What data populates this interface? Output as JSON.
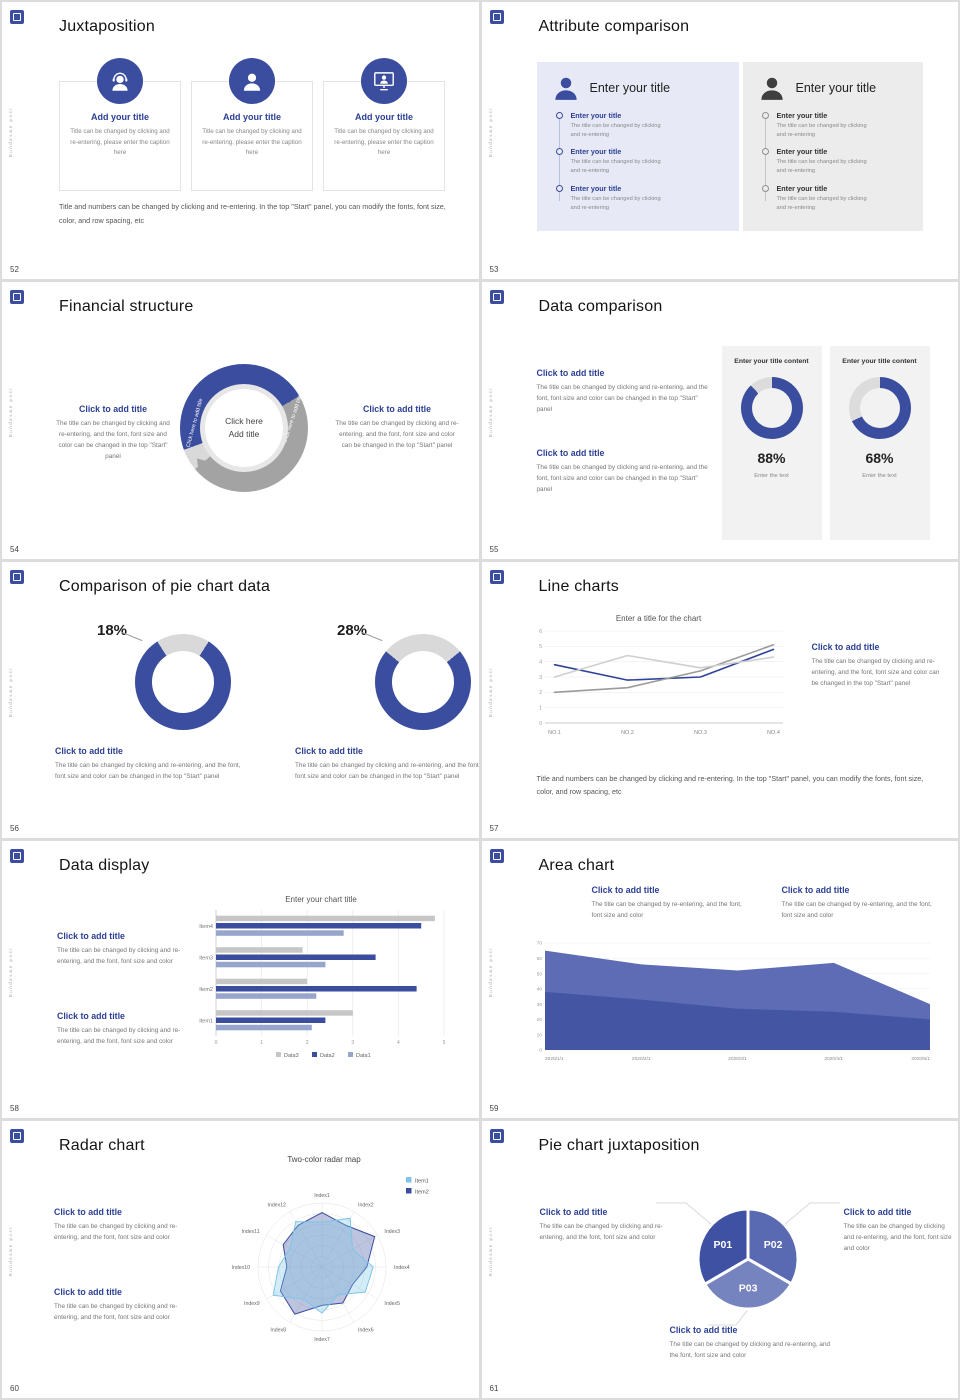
{
  "page": {
    "bg": "#dcdcdc",
    "slide_bg": "#ffffff",
    "accent": "#3a4d9f",
    "donut_gray": "#dcdcdc"
  },
  "common": {
    "side_text": "Bundeswe post"
  },
  "slides": {
    "s52": {
      "number": "52",
      "title": "Juxtaposition",
      "cards": [
        {
          "heading": "Add your title",
          "caption": "Title can be changed by clicking and re-entering, please enter the caption here"
        },
        {
          "heading": "Add your title",
          "caption": "Title can be changed by clicking and re-entering, please enter the caption here"
        },
        {
          "heading": "Add your title",
          "caption": "Title can be changed by clicking and re-entering, please enter the caption here"
        }
      ],
      "footer": "Title and numbers can be changed by clicking and re-entering. In the top \"Start\" panel, you can modify the fonts, font size, color, and row spacing, etc"
    },
    "s53": {
      "number": "53",
      "title": "Attribute comparison",
      "panels": [
        {
          "title": "Enter your title",
          "items": [
            {
              "heading": "Enter your title",
              "body": "The title can be changed by clicking and re-entering"
            },
            {
              "heading": "Enter your title",
              "body": "The title can be changed by clicking and re-entering"
            },
            {
              "heading": "Enter your title",
              "body": "The title can be changed by clicking and re-entering"
            }
          ]
        },
        {
          "title": "Enter your title",
          "items": [
            {
              "heading": "Enter your title",
              "body": "The title can be changed by clicking and re-entering"
            },
            {
              "heading": "Enter your title",
              "body": "The title can be changed by clicking and re-entering"
            },
            {
              "heading": "Enter your title",
              "body": "The title can be changed by clicking and re-entering"
            }
          ]
        }
      ]
    },
    "s54": {
      "number": "54",
      "title": "Financial structure",
      "left": {
        "heading": "Click to add title",
        "body": "The title can be changed by clicking and re-entering, and the font, font size and color can be changed in the top \"Start\" panel"
      },
      "right": {
        "heading": "Click to add title",
        "body": "The title can be changed by clicking and re-entering, and the font, font size and color can be changed in the top \"Start\" panel"
      },
      "center": {
        "line1": "Click here",
        "line2": "Add title",
        "arc_label_left": "Click here to add title",
        "arc_label_right": "Click here to add title"
      }
    },
    "s55": {
      "number": "55",
      "title": "Data comparison",
      "sections": [
        {
          "heading": "Click to add title",
          "body": "The title can be changed by clicking and re-entering, and the font, font size and color can be changed in the top \"Start\" panel"
        },
        {
          "heading": "Click to add title",
          "body": "The title can be changed by clicking and re-entering, and the font, font size and color can be changed in the top \"Start\" panel"
        }
      ],
      "cards": [
        {
          "header": "Enter your title content",
          "pct_label": "88%",
          "footer": "Enter the text"
        },
        {
          "header": "Enter your title content",
          "pct_label": "68%",
          "footer": "Enter the text"
        }
      ]
    },
    "s56": {
      "number": "56",
      "title": "Comparison of pie chart data",
      "groups": [
        {
          "pct_label": "18%",
          "heading": "Click to add title",
          "body": "The title can be changed by clicking and re-entering, and the font, font size and color can be changed in the top \"Start\" panel"
        },
        {
          "pct_label": "28%",
          "heading": "Click to add title",
          "body": "The title can be changed by clicking and re-entering, and the font, font size and color can be changed in the top \"Start\" panel"
        }
      ]
    },
    "s57": {
      "number": "57",
      "title": "Line charts",
      "chart_title": "Enter a title for the chart",
      "section": {
        "heading": "Click to add title",
        "body": "The title can be changed by clicking and re-entering, and the font, font size and color can be changed in the top \"Start\" panel"
      },
      "footer": "Title and numbers can be changed by clicking and re-entering. In the top \"Start\" panel, you can modify the fonts, font size, color, and row spacing, etc"
    },
    "s58": {
      "number": "58",
      "title": "Data display",
      "chart_title": "Enter your chart title",
      "sections": [
        {
          "heading": "Click to add title",
          "body": "The title can be changed by clicking and re-entering, and the font, font size and color"
        },
        {
          "heading": "Click to add title",
          "body": "The title can be changed by clicking and re-entering, and the font, font size and color"
        }
      ]
    },
    "s59": {
      "number": "59",
      "title": "Area chart",
      "sections": [
        {
          "heading": "Click to add title",
          "body": "The title can be changed by re-entering, and the font, font size and color"
        },
        {
          "heading": "Click to add title",
          "body": "The title can be changed by re-entering, and the font, font size and color"
        }
      ]
    },
    "s60": {
      "number": "60",
      "title": "Radar chart",
      "chart_title": "Two-color radar map",
      "sections": [
        {
          "heading": "Click to add title",
          "body": "The title can be changed by clicking and re-entering, and the font, font size and color"
        },
        {
          "heading": "Click to add title",
          "body": "The title can be changed by clicking and re-entering, and the font, font size and color"
        }
      ]
    },
    "s61": {
      "number": "61",
      "title": "Pie chart juxtaposition",
      "blocks": [
        {
          "heading": "Click to add title",
          "body": "The title can be changed by clicking and re-entering, and the font, font size and color"
        },
        {
          "heading": "Click to add title",
          "body": "The title can be changed by clicking and re-entering, and the font, font size and color"
        },
        {
          "heading": "Click to add title",
          "body": "The title can be changed by clicking and re-entering, and the font, font size and color"
        }
      ]
    }
  },
  "chart_data": [
    {
      "id": "donut55a",
      "type": "donut",
      "pct": 88,
      "color": "#3a4d9f",
      "rest_color": "#dcdcdc",
      "label": "88%",
      "caption": "Enter the text",
      "header": "Enter your title content"
    },
    {
      "id": "donut55b",
      "type": "donut",
      "pct": 68,
      "color": "#3a4d9f",
      "rest_color": "#dcdcdc",
      "label": "68%",
      "caption": "Enter the text",
      "header": "Enter your title content"
    },
    {
      "id": "donut56a",
      "type": "donut",
      "pct": 18,
      "segment": "gray",
      "color": "#3a4d9f",
      "rest_color": "#d9d9d9",
      "label": "18%"
    },
    {
      "id": "donut56b",
      "type": "donut",
      "pct": 28,
      "segment": "gray",
      "color": "#3a4d9f",
      "rest_color": "#d9d9d9",
      "label": "28%"
    },
    {
      "id": "line57",
      "type": "line",
      "title": "Enter a title for the chart",
      "categories": [
        "NO.1",
        "NO.2",
        "NO.3",
        "NO.4"
      ],
      "ylim": [
        0,
        6
      ],
      "yticks": [
        0,
        1,
        2,
        3,
        4,
        5,
        6
      ],
      "grid": true,
      "series": [
        {
          "name": "series1",
          "color": "#2f4496",
          "values": [
            3.8,
            2.8,
            3.0,
            4.8
          ]
        },
        {
          "name": "series2",
          "color": "#9b9b9b",
          "values": [
            2.0,
            2.3,
            3.4,
            5.1
          ]
        },
        {
          "name": "series3",
          "color": "#cfcfcf",
          "values": [
            3.0,
            4.4,
            3.6,
            4.3
          ]
        }
      ]
    },
    {
      "id": "bar58",
      "type": "bar",
      "title": "Enter your chart title",
      "categories": [
        "Item4",
        "Item3",
        "Item2",
        "Item1"
      ],
      "xlim": [
        0,
        5
      ],
      "xticks": [
        0,
        1,
        2,
        3,
        4,
        5
      ],
      "legend_position": "bottom",
      "series": [
        {
          "name": "Data3",
          "color": "#c6c6c6",
          "values": [
            4.8,
            1.9,
            2.0,
            3.0
          ]
        },
        {
          "name": "Data2",
          "color": "#3a4d9f",
          "values": [
            4.5,
            3.5,
            4.4,
            2.4
          ]
        },
        {
          "name": "Data1",
          "color": "#97a5cd",
          "values": [
            2.8,
            2.4,
            2.2,
            2.1
          ]
        }
      ]
    },
    {
      "id": "area59",
      "type": "area",
      "categories": [
        "2020/1/1",
        "2020/2/1",
        "2020/3/1",
        "2020/4/1",
        "2020/5/1"
      ],
      "ylim": [
        0,
        70
      ],
      "yticks": [
        0,
        10,
        20,
        30,
        40,
        50,
        60,
        70
      ],
      "series": [
        {
          "name": "series1",
          "color": "#5d6cb4",
          "values": [
            65,
            56,
            52,
            57,
            30
          ]
        },
        {
          "name": "series2",
          "color": "#4456a3",
          "values": [
            38,
            33,
            27,
            25,
            20
          ]
        }
      ]
    },
    {
      "id": "radar60",
      "type": "radar",
      "title": "Two-color radar map",
      "max": 100,
      "categories": [
        "Index1",
        "Index2",
        "Index3",
        "Index4",
        "Index5",
        "Index6",
        "Index7",
        "Index8",
        "Index9",
        "Index10",
        "Index11",
        "Index12"
      ],
      "series": [
        {
          "name": "Item1",
          "color": "#7ec5e8",
          "values": [
            70,
            88,
            55,
            80,
            78,
            50,
            72,
            58,
            88,
            68,
            58,
            82
          ]
        },
        {
          "name": "Item2",
          "color": "#3a4d9f",
          "values": [
            85,
            75,
            95,
            70,
            55,
            65,
            60,
            85,
            75,
            55,
            70,
            75
          ]
        }
      ]
    },
    {
      "id": "pie61",
      "type": "pie",
      "labels": [
        "P01",
        "P02",
        "P03"
      ],
      "values": [
        33.4,
        33.3,
        33.3
      ],
      "colors": [
        "#3f51a3",
        "#5a6ab2",
        "#7583bf"
      ]
    }
  ]
}
